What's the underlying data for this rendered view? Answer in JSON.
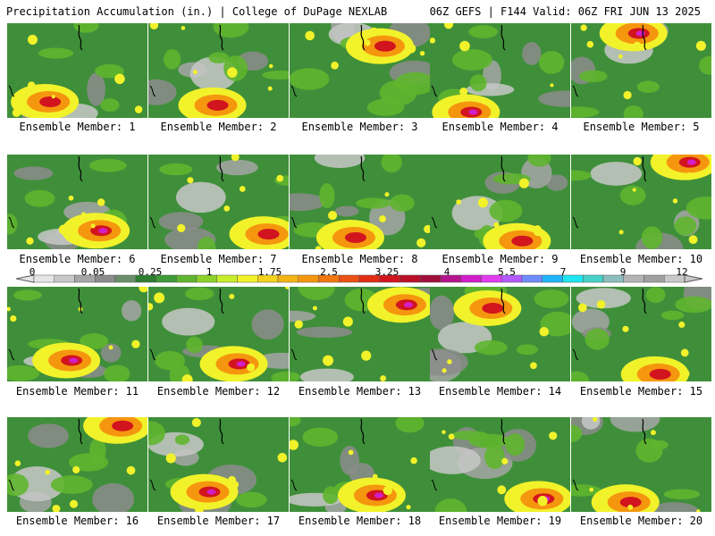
{
  "header": {
    "title": "Precipitation Accumulation (in.) | College of DuPage NEXLAB",
    "run_info": "06Z GEFS | F144 Valid: 06Z FRI JUN 13 2025"
  },
  "panels": [
    {
      "label": "Ensemble Member: 1",
      "wet_side": "south"
    },
    {
      "label": "Ensemble Member: 2",
      "wet_side": "south"
    },
    {
      "label": "Ensemble Member: 3",
      "wet_side": "north"
    },
    {
      "label": "Ensemble Member: 4",
      "wet_side": "south"
    },
    {
      "label": "Ensemble Member: 5",
      "wet_side": "north"
    },
    {
      "label": "Ensemble Member: 6",
      "wet_side": "south"
    },
    {
      "label": "Ensemble Member: 7",
      "wet_side": "south"
    },
    {
      "label": "Ensemble Member: 8",
      "wet_side": "south"
    },
    {
      "label": "Ensemble Member: 9",
      "wet_side": "south"
    },
    {
      "label": "Ensemble Member: 10",
      "wet_side": "north"
    },
    {
      "label": "Ensemble Member: 11",
      "wet_side": "south"
    },
    {
      "label": "Ensemble Member: 12",
      "wet_side": "south"
    },
    {
      "label": "Ensemble Member: 13",
      "wet_side": "north"
    },
    {
      "label": "Ensemble Member: 14",
      "wet_side": "north"
    },
    {
      "label": "Ensemble Member: 15",
      "wet_side": "south"
    },
    {
      "label": "Ensemble Member: 16",
      "wet_side": "north"
    },
    {
      "label": "Ensemble Member: 17",
      "wet_side": "south"
    },
    {
      "label": "Ensemble Member: 18",
      "wet_side": "south"
    },
    {
      "label": "Ensemble Member: 19",
      "wet_side": "south"
    },
    {
      "label": "Ensemble Member: 20",
      "wet_side": "south"
    }
  ],
  "colorbar": {
    "labels": [
      "0",
      "0.05",
      "0.25",
      "1",
      "1.75",
      "2.5",
      "3.25",
      "4",
      "5.5",
      "7",
      "9",
      "12"
    ],
    "colors": [
      "#e6e6e6",
      "#c8c8c8",
      "#a6a6a6",
      "#8c8c8c",
      "#6b8f6b",
      "#2e7d32",
      "#3f9b3a",
      "#5fb52f",
      "#8cd22a",
      "#c8ee2a",
      "#f2f22a",
      "#f5d21e",
      "#f5b414",
      "#f5960f",
      "#f0780f",
      "#eb5014",
      "#e12d14",
      "#d2141e",
      "#b90f28",
      "#a00f3c",
      "#b4148c",
      "#d21ec8",
      "#e13cf0",
      "#b45aff",
      "#6e8cff",
      "#1eb4ff",
      "#1ee6f0",
      "#46d2c8",
      "#8cbebe",
      "#b4b4b4",
      "#a0a0a0",
      "#c8c8c8"
    ]
  }
}
